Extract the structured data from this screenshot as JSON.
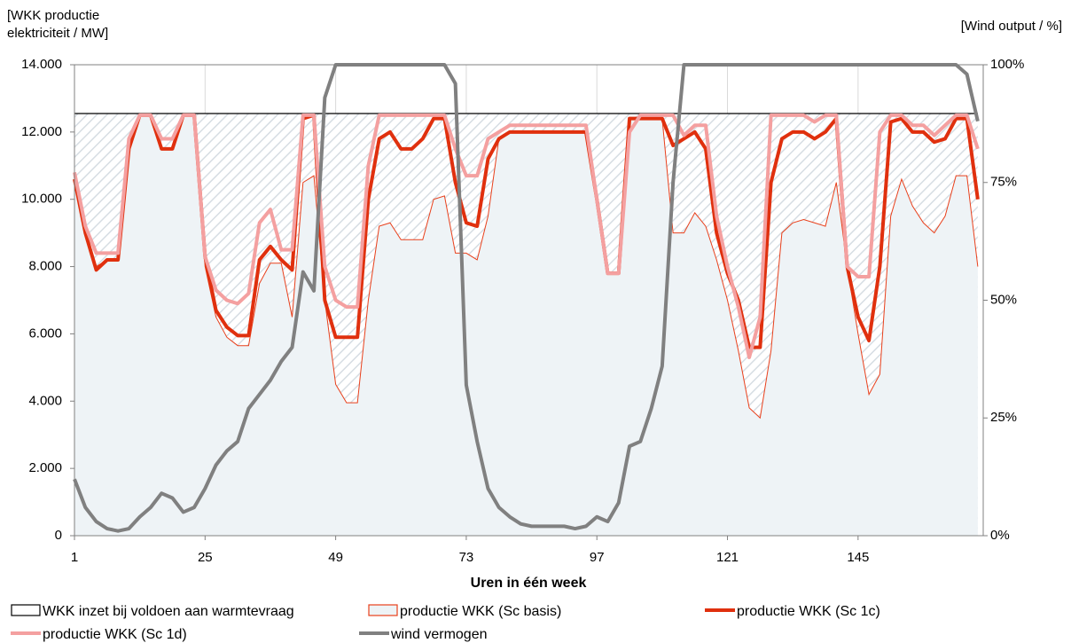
{
  "chart_data": {
    "type": "line",
    "xlabel": "Uren in één week",
    "ylabel": "[WKK productie elektriciteit / MW]",
    "y2label": "[Wind output / %]",
    "xlim": [
      1,
      168
    ],
    "xticks": [
      1,
      25,
      49,
      73,
      97,
      121,
      145
    ],
    "xgrid": true,
    "ylim": [
      0,
      14000
    ],
    "yticks": [
      0,
      {
        "value": 2000,
        "label": "2.000"
      },
      {
        "value": 4000,
        "label": "4.000"
      },
      {
        "value": 6000,
        "label": "6.000"
      },
      {
        "value": 8000,
        "label": "8.000"
      },
      {
        "value": 10000,
        "label": "10.000"
      },
      {
        "value": 12000,
        "label": "12.000"
      },
      {
        "value": 14000,
        "label": "14.000"
      }
    ],
    "y2lim": [
      0,
      100
    ],
    "y2ticks": [
      {
        "value": 0,
        "label": "0%"
      },
      {
        "value": 25,
        "label": "25%"
      },
      {
        "value": 50,
        "label": "50%"
      },
      {
        "value": 75,
        "label": "75%"
      },
      {
        "value": 100,
        "label": "100%"
      }
    ],
    "x": [
      1,
      3,
      5,
      7,
      9,
      11,
      13,
      15,
      17,
      19,
      21,
      23,
      25,
      27,
      29,
      31,
      33,
      35,
      37,
      39,
      41,
      43,
      45,
      47,
      49,
      51,
      53,
      55,
      57,
      59,
      61,
      63,
      65,
      67,
      69,
      71,
      73,
      75,
      77,
      79,
      81,
      83,
      85,
      87,
      89,
      91,
      93,
      95,
      97,
      99,
      101,
      103,
      105,
      107,
      109,
      111,
      113,
      115,
      117,
      119,
      121,
      123,
      125,
      127,
      129,
      131,
      133,
      135,
      137,
      139,
      141,
      143,
      145,
      147,
      149,
      151,
      153,
      155,
      157,
      159,
      161,
      163,
      165,
      167
    ],
    "series": [
      {
        "name": "WKK inzet bij voldoen aan warmtevraag",
        "kind": "area",
        "color": "#000000",
        "fill": "#ffffff",
        "hatch": "#d6dde3",
        "width": 1.3,
        "values": [
          12550,
          12550,
          12550,
          12550,
          12550,
          12550,
          12550,
          12550,
          12550,
          12550,
          12550,
          12550,
          12550,
          12550,
          12550,
          12550,
          12550,
          12550,
          12550,
          12550,
          12550,
          12550,
          12550,
          12550,
          12550,
          12550,
          12550,
          12550,
          12550,
          12550,
          12550,
          12550,
          12550,
          12550,
          12550,
          12550,
          12550,
          12550,
          12550,
          12550,
          12550,
          12550,
          12550,
          12550,
          12550,
          12550,
          12550,
          12550,
          12550,
          12550,
          12550,
          12550,
          12550,
          12550,
          12550,
          12550,
          12550,
          12550,
          12550,
          12550,
          12550,
          12550,
          12550,
          12550,
          12550,
          12550,
          12550,
          12550,
          12550,
          12550,
          12550,
          12550,
          12550,
          12550,
          12550,
          12550,
          12550,
          12550,
          12550,
          12550,
          12550,
          12550,
          12550,
          12550
        ]
      },
      {
        "name": "productie WKK (Sc basis)",
        "kind": "area",
        "color": "#e8401c",
        "fill": "#eef3f6",
        "width": 1,
        "values": [
          10500,
          9000,
          8000,
          8200,
          8200,
          11500,
          12500,
          12500,
          11500,
          11500,
          12500,
          12500,
          8000,
          6500,
          5900,
          5650,
          5650,
          7500,
          8100,
          8100,
          6500,
          10500,
          10700,
          7000,
          4500,
          3950,
          3950,
          7000,
          9200,
          9300,
          8800,
          8800,
          8800,
          10000,
          10100,
          8400,
          8400,
          8200,
          9500,
          11800,
          12000,
          12000,
          12000,
          12000,
          12000,
          12000,
          12000,
          12000,
          10000,
          7800,
          7800,
          12400,
          12400,
          12400,
          12400,
          9000,
          9000,
          9600,
          9200,
          8200,
          7000,
          5500,
          3800,
          3500,
          5500,
          9000,
          9300,
          9400,
          9300,
          9200,
          10500,
          8000,
          6000,
          4200,
          4800,
          9500,
          10600,
          9800,
          9300,
          9000,
          9500,
          10700,
          10700,
          8000
        ]
      },
      {
        "name": "productie WKK (Sc 1c)",
        "kind": "line",
        "color": "#e0300e",
        "width": 4,
        "values": [
          10600,
          9000,
          7900,
          8200,
          8200,
          11500,
          12500,
          12500,
          11500,
          11500,
          12500,
          12500,
          8300,
          6700,
          6200,
          5950,
          5950,
          8200,
          8600,
          8200,
          7900,
          12400,
          12500,
          7000,
          5900,
          5900,
          5900,
          10000,
          11800,
          12000,
          11500,
          11500,
          11800,
          12400,
          12400,
          10500,
          9300,
          9200,
          11200,
          11800,
          12000,
          12000,
          12000,
          12000,
          12000,
          12000,
          12000,
          12000,
          10000,
          7800,
          7800,
          12400,
          12400,
          12400,
          12400,
          11600,
          11800,
          12000,
          11500,
          9000,
          7800,
          7000,
          5600,
          5600,
          10500,
          11800,
          12000,
          12000,
          11800,
          12000,
          12400,
          8000,
          6500,
          5800,
          8000,
          12300,
          12400,
          12000,
          12000,
          11700,
          11800,
          12400,
          12400,
          10000
        ]
      },
      {
        "name": "productie WKK (Sc 1d)",
        "kind": "line",
        "color": "#f4a0a0",
        "width": 4,
        "values": [
          10800,
          9200,
          8400,
          8400,
          8400,
          11800,
          12500,
          12500,
          11800,
          11800,
          12500,
          12500,
          8300,
          7300,
          7000,
          6900,
          7200,
          9300,
          9700,
          8500,
          8500,
          12500,
          12500,
          8000,
          7000,
          6800,
          6800,
          11000,
          12500,
          12500,
          12500,
          12500,
          12500,
          12500,
          12500,
          11500,
          10700,
          10700,
          11800,
          12000,
          12200,
          12200,
          12200,
          12200,
          12200,
          12200,
          12200,
          12200,
          10000,
          7800,
          7800,
          12000,
          12500,
          12500,
          12500,
          12500,
          11900,
          12200,
          12200,
          9500,
          8000,
          6800,
          5300,
          6500,
          12500,
          12500,
          12500,
          12500,
          12300,
          12500,
          12500,
          8000,
          7700,
          7700,
          12000,
          12500,
          12500,
          12200,
          12200,
          11900,
          12200,
          12500,
          12500,
          11500
        ]
      },
      {
        "name": "wind vermogen",
        "kind": "line",
        "color": "#808080",
        "width": 4,
        "axis": "y2",
        "values": [
          12,
          6,
          3,
          1.5,
          1,
          1.5,
          4,
          6,
          9,
          8,
          5,
          6,
          10,
          15,
          18,
          20,
          27,
          30,
          33,
          37,
          40,
          56,
          52,
          93,
          100,
          100,
          100,
          100,
          100,
          100,
          100,
          100,
          100,
          100,
          100,
          96,
          32,
          20,
          10,
          6,
          4,
          2.5,
          2,
          2,
          2,
          2,
          1.5,
          2,
          4,
          3,
          7,
          19,
          20,
          27,
          36,
          75,
          100,
          100,
          100,
          100,
          100,
          100,
          100,
          100,
          100,
          100,
          100,
          100,
          100,
          100,
          100,
          100,
          100,
          100,
          100,
          100,
          100,
          100,
          100,
          100,
          100,
          100,
          98,
          88
        ]
      }
    ]
  }
}
